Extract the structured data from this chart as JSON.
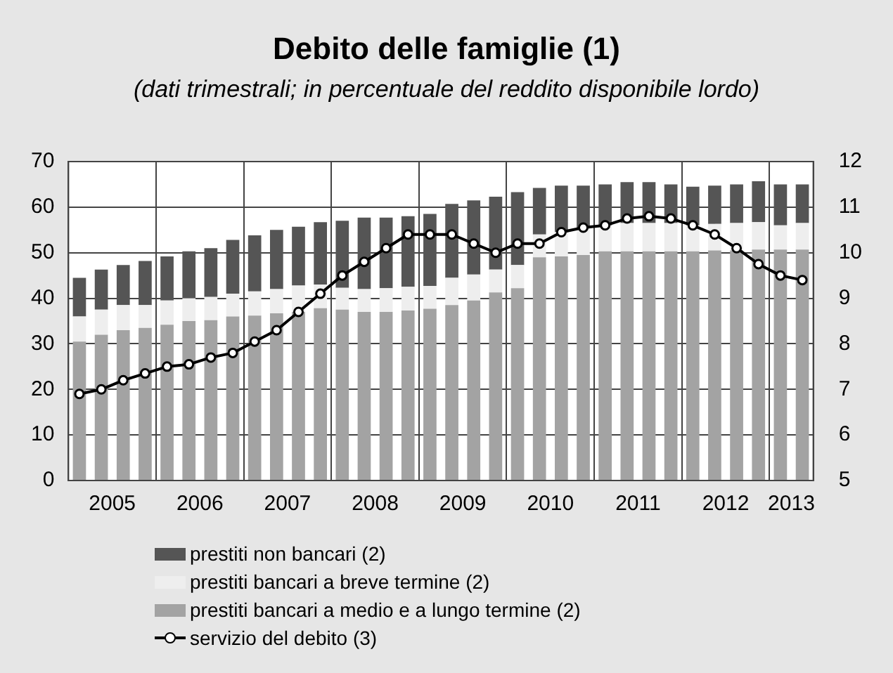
{
  "chart_data": {
    "type": "bar",
    "title": "Debito delle famiglie (1)",
    "subtitle": "(dati trimestrali; in percentuale del reddito disponibile lordo)",
    "x": [
      2005.125,
      2005.375,
      2005.625,
      2005.875,
      2006.125,
      2006.375,
      2006.625,
      2006.875,
      2007.125,
      2007.375,
      2007.625,
      2007.875,
      2008.125,
      2008.375,
      2008.625,
      2008.875,
      2009.125,
      2009.375,
      2009.625,
      2009.875,
      2010.125,
      2010.375,
      2010.625,
      2010.875,
      2011.125,
      2011.375,
      2011.625,
      2011.875,
      2012.125,
      2012.375,
      2012.625,
      2012.875,
      2013.125,
      2013.375
    ],
    "stacked": true,
    "series": [
      {
        "name": "prestiti bancari a medio e a lungo termine (2)",
        "color": "#a3a3a3",
        "values": [
          30.5,
          32,
          33,
          33.5,
          34.2,
          35,
          35.2,
          36,
          36.2,
          36.7,
          37,
          37.8,
          37.5,
          37,
          37,
          37.3,
          37.7,
          38.5,
          39.5,
          41.3,
          42.2,
          49,
          49.2,
          49.5,
          50.3,
          50.3,
          50.3,
          50.3,
          50.3,
          50.5,
          50.5,
          50.7,
          50.7,
          50.7
        ]
      },
      {
        "name": "prestiti bancari a breve termine (2)",
        "color": "#eeeeee",
        "values": [
          5.5,
          5.5,
          5.5,
          5,
          5.3,
          5,
          5.1,
          5,
          5.3,
          5.3,
          5.8,
          5.2,
          4.8,
          5,
          5.2,
          5.2,
          5,
          6,
          5.7,
          5,
          5.1,
          5,
          5.3,
          6,
          5.7,
          6.2,
          6.2,
          6.2,
          5.7,
          5.8,
          6,
          6,
          5.3,
          5.8
        ]
      },
      {
        "name": "prestiti non bancari (2)",
        "color": "#555555",
        "values": [
          8.5,
          8.8,
          8.8,
          9.7,
          9.7,
          10.3,
          10.7,
          11.8,
          12.3,
          13,
          12.9,
          13.7,
          14.7,
          15.7,
          15.5,
          15.5,
          15.8,
          16.2,
          16.3,
          16,
          16,
          10.2,
          10.2,
          9.2,
          9,
          9,
          9,
          8.5,
          8.5,
          8.4,
          8.5,
          9,
          9,
          8.5
        ]
      },
      {
        "name": "servizio del debito (3)",
        "type": "line",
        "axis": "y2",
        "color": "#000000",
        "marker": "circle",
        "values": [
          6.9,
          7,
          7.2,
          7.35,
          7.5,
          7.55,
          7.7,
          7.8,
          8.05,
          8.3,
          8.7,
          9.1,
          9.5,
          9.8,
          10.1,
          10.4,
          10.4,
          10.4,
          10.2,
          10,
          10.2,
          10.2,
          10.45,
          10.55,
          10.6,
          10.75,
          10.8,
          10.75,
          10.6,
          10.4,
          10.1,
          9.75,
          9.5,
          9.4
        ]
      }
    ],
    "xlim": [
      2005,
      2013.5
    ],
    "xticks": [
      {
        "value": 2005.5,
        "label": "2005"
      },
      {
        "value": 2006,
        "label": null
      },
      {
        "value": 2006.5,
        "label": "2006"
      },
      {
        "value": 2007,
        "label": null
      },
      {
        "value": 2007.5,
        "label": "2007"
      },
      {
        "value": 2008,
        "label": null
      },
      {
        "value": 2008.5,
        "label": "2008"
      },
      {
        "value": 2009,
        "label": null
      },
      {
        "value": 2009.5,
        "label": "2009"
      },
      {
        "value": 2010,
        "label": null
      },
      {
        "value": 2010.5,
        "label": "2010"
      },
      {
        "value": 2011,
        "label": null
      },
      {
        "value": 2011.5,
        "label": "2011"
      },
      {
        "value": 2012,
        "label": null
      },
      {
        "value": 2012.5,
        "label": "2012"
      },
      {
        "value": 2013,
        "label": null
      },
      {
        "value": 2013.25,
        "label": "2013"
      }
    ],
    "ylim": [
      0,
      70
    ],
    "yticks": [
      0,
      10,
      20,
      30,
      40,
      50,
      60,
      70
    ],
    "y2lim": [
      5,
      12
    ],
    "y2ticks": [
      5,
      6,
      7,
      8,
      9,
      10,
      11,
      12
    ],
    "grid": true,
    "legend": "bottom left"
  }
}
